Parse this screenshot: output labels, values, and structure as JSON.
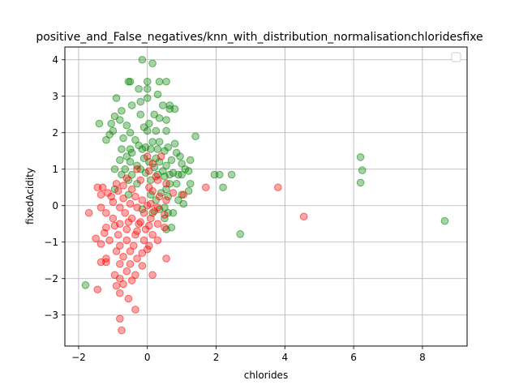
{
  "chart_data": {
    "type": "scatter",
    "title": "positive_and_False_negatives/knn_with_distribution_normalisationchloridesfixe",
    "xlabel": "chlorides",
    "ylabel": "fixedAcidity",
    "xlim": [
      -2.4,
      9.3
    ],
    "ylim": [
      -3.85,
      4.35
    ],
    "xticks": [
      -2,
      0,
      2,
      4,
      6,
      8
    ],
    "yticks": [
      -3,
      -2,
      -1,
      0,
      1,
      2,
      3,
      4
    ],
    "grid": true,
    "legend": "top-right (empty)",
    "colors": {
      "green": "#008000",
      "red": "#ff0000"
    },
    "series": [
      {
        "color": "green",
        "points": [
          [
            -0.15,
            4.0
          ],
          [
            0.15,
            3.9
          ],
          [
            0.0,
            3.4
          ],
          [
            -0.5,
            3.4
          ],
          [
            -0.55,
            3.4
          ],
          [
            0.35,
            3.4
          ],
          [
            0.55,
            3.4
          ],
          [
            -0.25,
            3.2
          ],
          [
            0.0,
            3.2
          ],
          [
            0.3,
            3.05
          ],
          [
            -0.9,
            2.95
          ],
          [
            -0.2,
            2.85
          ],
          [
            0.0,
            2.95
          ],
          [
            -0.45,
            2.75
          ],
          [
            0.45,
            2.75
          ],
          [
            0.65,
            2.75
          ],
          [
            0.8,
            2.65
          ],
          [
            0.65,
            2.65
          ],
          [
            -0.75,
            2.6
          ],
          [
            -0.95,
            2.45
          ],
          [
            -0.8,
            2.35
          ],
          [
            -0.2,
            2.5
          ],
          [
            0.2,
            2.5
          ],
          [
            0.35,
            2.4
          ],
          [
            0.55,
            2.35
          ],
          [
            -1.4,
            2.25
          ],
          [
            -1.05,
            2.25
          ],
          [
            0.05,
            2.25
          ],
          [
            -0.6,
            2.2
          ],
          [
            -0.1,
            2.15
          ],
          [
            -1.0,
            2.05
          ],
          [
            0.0,
            2.05
          ],
          [
            0.25,
            2.05
          ],
          [
            0.55,
            2.05
          ],
          [
            -0.5,
            2.0
          ],
          [
            -1.1,
            1.95
          ],
          [
            -0.7,
            1.85
          ],
          [
            -1.2,
            1.8
          ],
          [
            -0.35,
            1.8
          ],
          [
            0.15,
            1.75
          ],
          [
            0.35,
            1.75
          ],
          [
            1.4,
            1.9
          ],
          [
            0.8,
            1.7
          ],
          [
            -0.25,
            1.65
          ],
          [
            -0.05,
            1.6
          ],
          [
            -0.75,
            1.55
          ],
          [
            -0.5,
            1.55
          ],
          [
            -0.15,
            1.55
          ],
          [
            0.1,
            1.55
          ],
          [
            0.3,
            1.55
          ],
          [
            0.6,
            1.6
          ],
          [
            0.5,
            1.5
          ],
          [
            0.85,
            1.45
          ],
          [
            -0.45,
            1.45
          ],
          [
            0.95,
            1.35
          ],
          [
            -0.6,
            1.35
          ],
          [
            -0.1,
            1.3
          ],
          [
            0.25,
            1.3
          ],
          [
            -0.8,
            1.25
          ],
          [
            0.7,
            1.25
          ],
          [
            0.35,
            1.2
          ],
          [
            -0.5,
            1.2
          ],
          [
            0.05,
            1.2
          ],
          [
            0.55,
            1.1
          ],
          [
            -0.3,
            1.1
          ],
          [
            1.0,
            1.15
          ],
          [
            1.25,
            1.25
          ],
          [
            -0.95,
            1.0
          ],
          [
            -0.65,
            1.0
          ],
          [
            -0.2,
            1.0
          ],
          [
            0.2,
            1.05
          ],
          [
            0.45,
            0.95
          ],
          [
            0.75,
            0.9
          ],
          [
            1.1,
            1.0
          ],
          [
            1.2,
            0.95
          ],
          [
            1.0,
            0.85
          ],
          [
            0.9,
            0.85
          ],
          [
            0.65,
            0.85
          ],
          [
            0.5,
            0.8
          ],
          [
            -0.75,
            0.85
          ],
          [
            -0.45,
            0.85
          ],
          [
            -0.05,
            0.9
          ],
          [
            0.3,
            0.85
          ],
          [
            1.95,
            0.85
          ],
          [
            2.1,
            0.85
          ],
          [
            2.45,
            0.85
          ],
          [
            2.2,
            0.5
          ],
          [
            1.25,
            0.6
          ],
          [
            0.1,
            0.7
          ],
          [
            -0.55,
            0.7
          ],
          [
            0.85,
            0.6
          ],
          [
            0.65,
            0.6
          ],
          [
            -0.3,
            0.6
          ],
          [
            -0.95,
            0.45
          ],
          [
            0.55,
            0.45
          ],
          [
            1.2,
            0.4
          ],
          [
            0.4,
            0.35
          ],
          [
            0.1,
            0.3
          ],
          [
            -0.55,
            0.3
          ],
          [
            0.6,
            0.25
          ],
          [
            1.0,
            0.3
          ],
          [
            0.25,
            0.15
          ],
          [
            0.9,
            0.15
          ],
          [
            1.05,
            0.05
          ],
          [
            0.5,
            -0.05
          ],
          [
            0.35,
            -0.1
          ],
          [
            0.6,
            -0.2
          ],
          [
            0.75,
            -0.2
          ],
          [
            -0.15,
            -0.1
          ],
          [
            0.15,
            -0.2
          ],
          [
            0.5,
            -0.35
          ],
          [
            0.7,
            -0.6
          ],
          [
            0.55,
            -0.65
          ],
          [
            2.7,
            -0.78
          ],
          [
            6.2,
            1.33
          ],
          [
            6.25,
            0.97
          ],
          [
            6.2,
            0.63
          ],
          [
            8.65,
            -0.42
          ],
          [
            -1.8,
            -2.18
          ]
        ]
      },
      {
        "color": "red",
        "points": [
          [
            0.0,
            1.35
          ],
          [
            0.4,
            1.35
          ],
          [
            0.15,
            1.15
          ],
          [
            -0.3,
            1.0
          ],
          [
            0.05,
            0.95
          ],
          [
            0.25,
            0.8
          ],
          [
            -0.6,
            0.75
          ],
          [
            -0.2,
            0.7
          ],
          [
            0.3,
            0.7
          ],
          [
            0.55,
            0.6
          ],
          [
            -0.9,
            0.6
          ],
          [
            -1.3,
            0.5
          ],
          [
            -1.45,
            0.5
          ],
          [
            -0.7,
            0.55
          ],
          [
            -1.15,
            0.35
          ],
          [
            0.05,
            0.5
          ],
          [
            -0.45,
            0.45
          ],
          [
            0.15,
            0.4
          ],
          [
            -0.85,
            0.4
          ],
          [
            -1.35,
            0.3
          ],
          [
            -1.05,
            0.25
          ],
          [
            0.75,
            0.35
          ],
          [
            -0.35,
            0.25
          ],
          [
            0.35,
            0.25
          ],
          [
            1.05,
            0.3
          ],
          [
            -0.7,
            0.2
          ],
          [
            -0.15,
            0.15
          ],
          [
            0.55,
            0.15
          ],
          [
            -1.0,
            0.1
          ],
          [
            -0.5,
            0.05
          ],
          [
            0.1,
            0.05
          ],
          [
            -1.35,
            -0.05
          ],
          [
            -0.8,
            -0.05
          ],
          [
            -0.3,
            -0.05
          ],
          [
            0.3,
            -0.05
          ],
          [
            -1.7,
            -0.2
          ],
          [
            -1.2,
            -0.2
          ],
          [
            -0.65,
            -0.2
          ],
          [
            -0.1,
            -0.2
          ],
          [
            0.5,
            -0.25
          ],
          [
            -1.0,
            -0.35
          ],
          [
            -0.45,
            -0.35
          ],
          [
            0.1,
            -0.35
          ],
          [
            -0.8,
            -0.5
          ],
          [
            -0.25,
            -0.5
          ],
          [
            0.3,
            -0.5
          ],
          [
            -1.2,
            -0.6
          ],
          [
            -0.6,
            -0.65
          ],
          [
            -0.05,
            -0.65
          ],
          [
            0.5,
            -0.6
          ],
          [
            -1.25,
            -0.75
          ],
          [
            -0.85,
            -0.8
          ],
          [
            -0.35,
            -0.8
          ],
          [
            0.15,
            -0.8
          ],
          [
            -1.5,
            -0.9
          ],
          [
            -1.1,
            -0.95
          ],
          [
            -0.6,
            -0.95
          ],
          [
            -0.1,
            -0.95
          ],
          [
            0.3,
            -0.95
          ],
          [
            -0.8,
            -1.1
          ],
          [
            -0.4,
            -1.1
          ],
          [
            0.05,
            -1.1
          ],
          [
            -1.35,
            -1.05
          ],
          [
            -0.9,
            -1.25
          ],
          [
            -0.5,
            -1.25
          ],
          [
            -0.15,
            -1.3
          ],
          [
            0.0,
            -1.2
          ],
          [
            -1.2,
            -1.45
          ],
          [
            -0.7,
            -1.4
          ],
          [
            -0.3,
            -1.45
          ],
          [
            0.55,
            -1.45
          ],
          [
            -1.35,
            -1.55
          ],
          [
            -0.8,
            -1.6
          ],
          [
            -0.5,
            -1.6
          ],
          [
            -1.2,
            -1.55
          ],
          [
            -0.15,
            -1.65
          ],
          [
            -0.6,
            -1.8
          ],
          [
            -0.95,
            -1.9
          ],
          [
            -0.35,
            -1.9
          ],
          [
            0.15,
            -1.9
          ],
          [
            -0.8,
            -2.0
          ],
          [
            -0.45,
            -2.05
          ],
          [
            -0.7,
            -2.15
          ],
          [
            -0.9,
            -2.2
          ],
          [
            -1.45,
            -2.3
          ],
          [
            -0.8,
            -2.4
          ],
          [
            -0.55,
            -2.55
          ],
          [
            -0.35,
            -2.85
          ],
          [
            -0.8,
            -3.1
          ],
          [
            -0.75,
            -3.42
          ],
          [
            1.7,
            0.5
          ],
          [
            3.8,
            0.5
          ],
          [
            4.55,
            -0.3
          ],
          [
            0.0,
            0.0
          ],
          [
            -0.2,
            -0.45
          ],
          [
            0.2,
            -0.15
          ],
          [
            -0.55,
            -0.45
          ],
          [
            -0.95,
            -0.55
          ],
          [
            0.05,
            -0.55
          ],
          [
            -0.3,
            -0.7
          ]
        ]
      }
    ]
  }
}
